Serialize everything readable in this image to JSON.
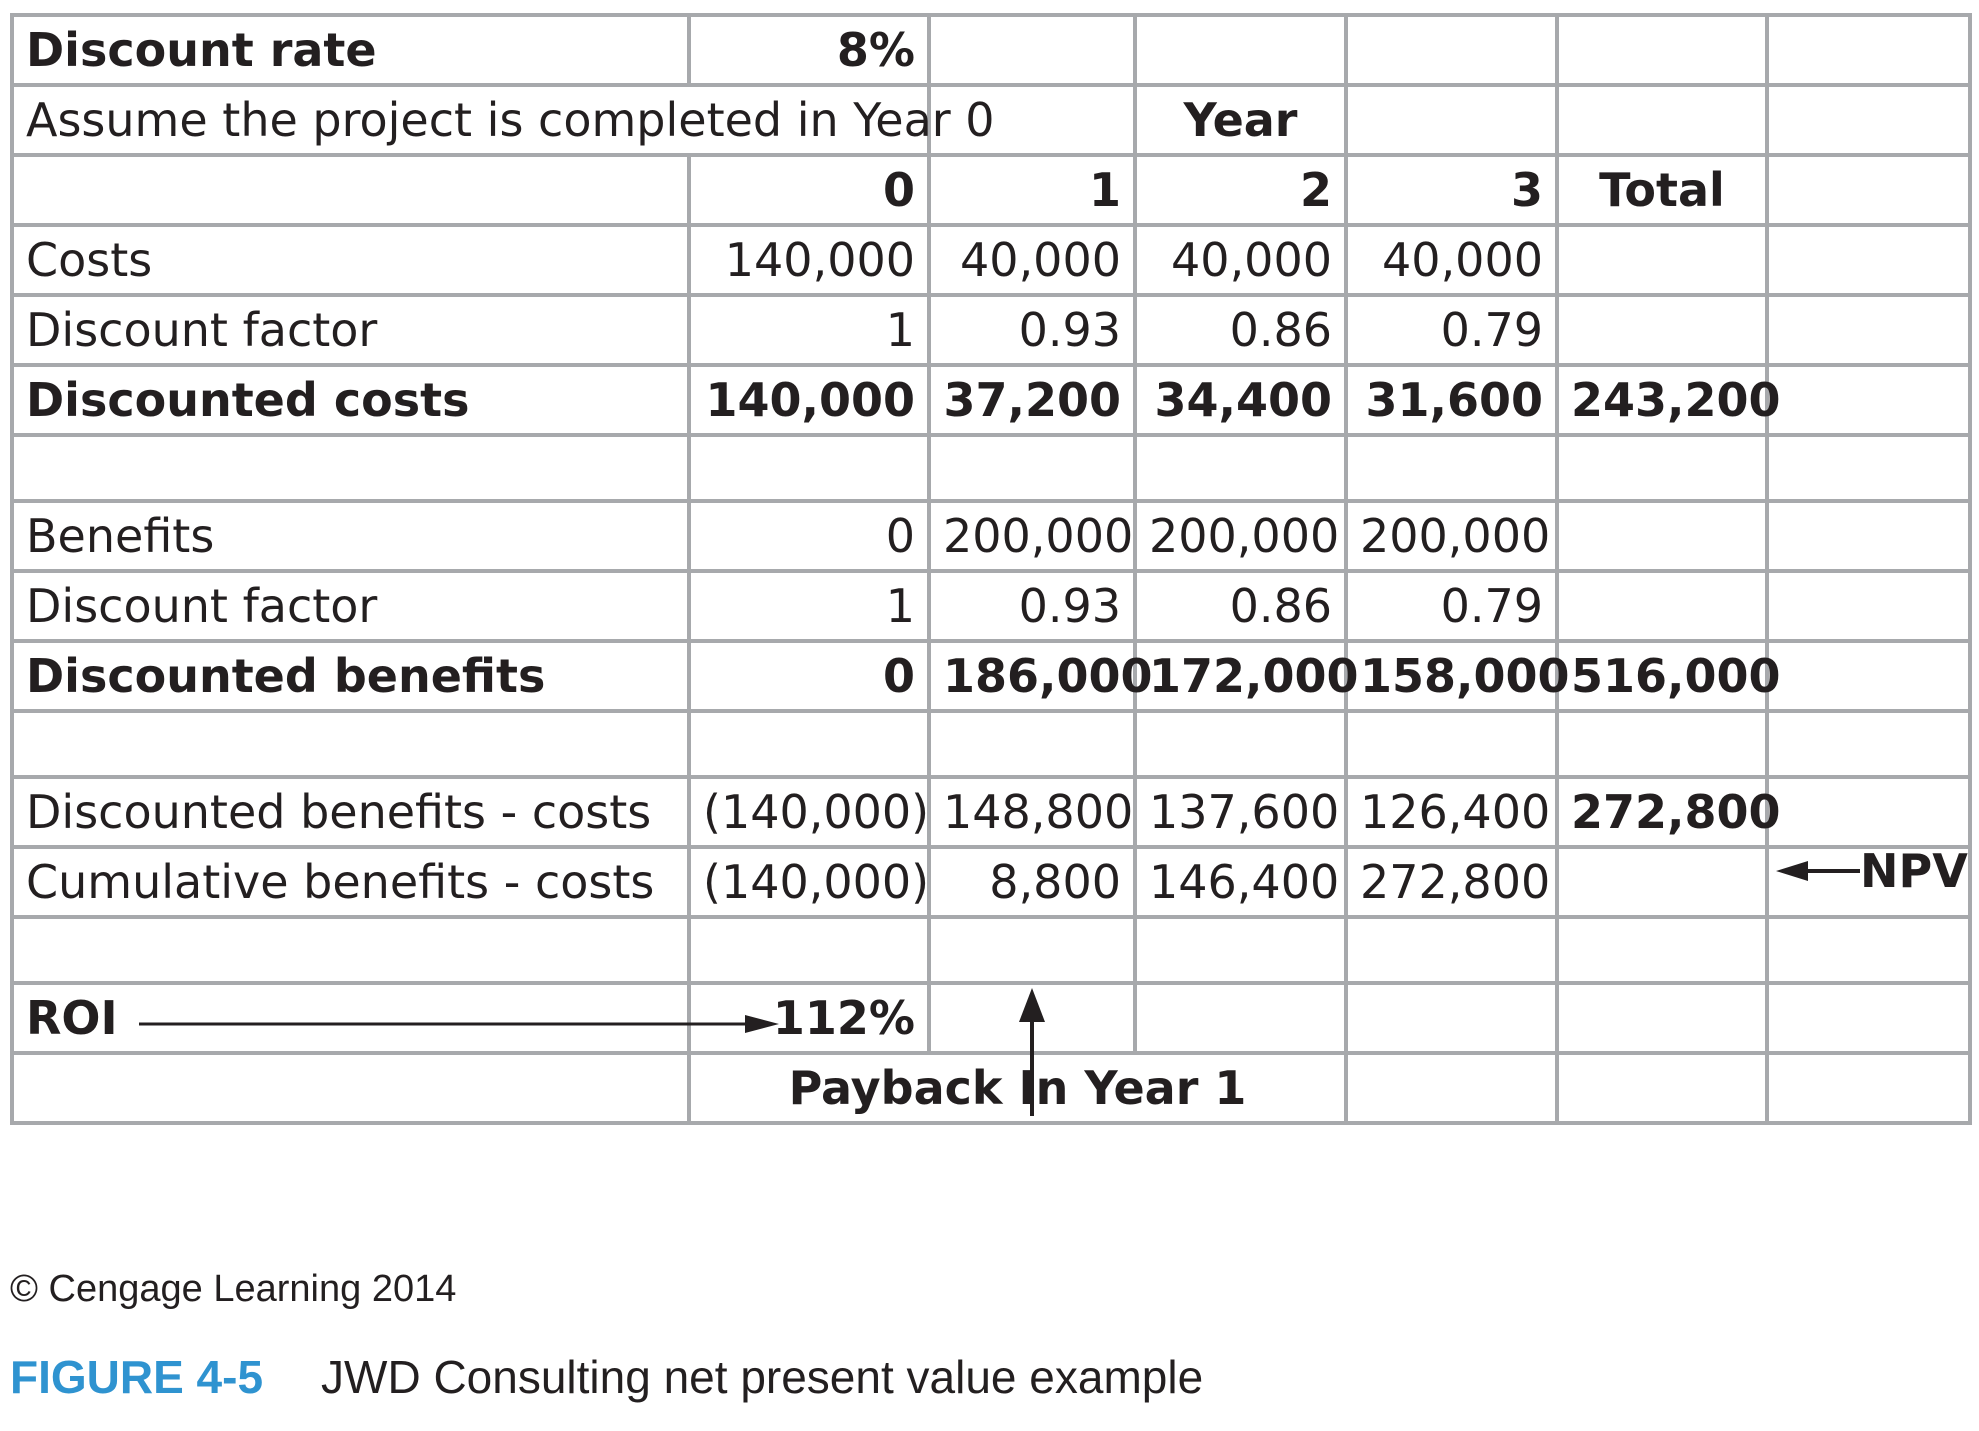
{
  "rate": {
    "label": "Discount rate",
    "value": "8%"
  },
  "assumption": "Assume the project is completed in Year 0",
  "year_header": "Year",
  "columns": [
    "0",
    "1",
    "2",
    "3",
    "Total"
  ],
  "costs": {
    "label": "Costs",
    "values": [
      "140,000",
      "40,000",
      "40,000",
      "40,000"
    ]
  },
  "cost_factor": {
    "label": "Discount factor",
    "values": [
      "1",
      "0.93",
      "0.86",
      "0.79"
    ]
  },
  "discounted_costs": {
    "label": "Discounted costs",
    "values": [
      "140,000",
      "37,200",
      "34,400",
      "31,600",
      "243,200"
    ]
  },
  "benefits": {
    "label": "Benefits",
    "values": [
      "0",
      "200,000",
      "200,000",
      "200,000"
    ]
  },
  "benefit_factor": {
    "label": "Discount factor",
    "values": [
      "1",
      "0.93",
      "0.86",
      "0.79"
    ]
  },
  "discounted_benefits": {
    "label": "Discounted benefits",
    "values": [
      "0",
      "186,000",
      "172,000",
      "158,000",
      "516,000"
    ]
  },
  "net": {
    "label": "Discounted benefits - costs",
    "values": [
      "(140,000)",
      "148,800",
      "137,600",
      "126,400",
      "272,800"
    ]
  },
  "cumulative": {
    "label": "Cumulative benefits - costs",
    "values": [
      "(140,000)",
      "8,800",
      "146,400",
      "272,800"
    ]
  },
  "roi": {
    "label": "ROI",
    "value": "112%"
  },
  "payback": "Payback In Year 1",
  "npv_label": "NPV",
  "credit": "© Cengage Learning 2014",
  "caption": {
    "figure": "FIGURE 4-5",
    "text": "JWD Consulting net present value example"
  },
  "colors": {
    "grid": "#a7a9ac",
    "figure_label": "#2f93d0",
    "text": "#231f20"
  }
}
